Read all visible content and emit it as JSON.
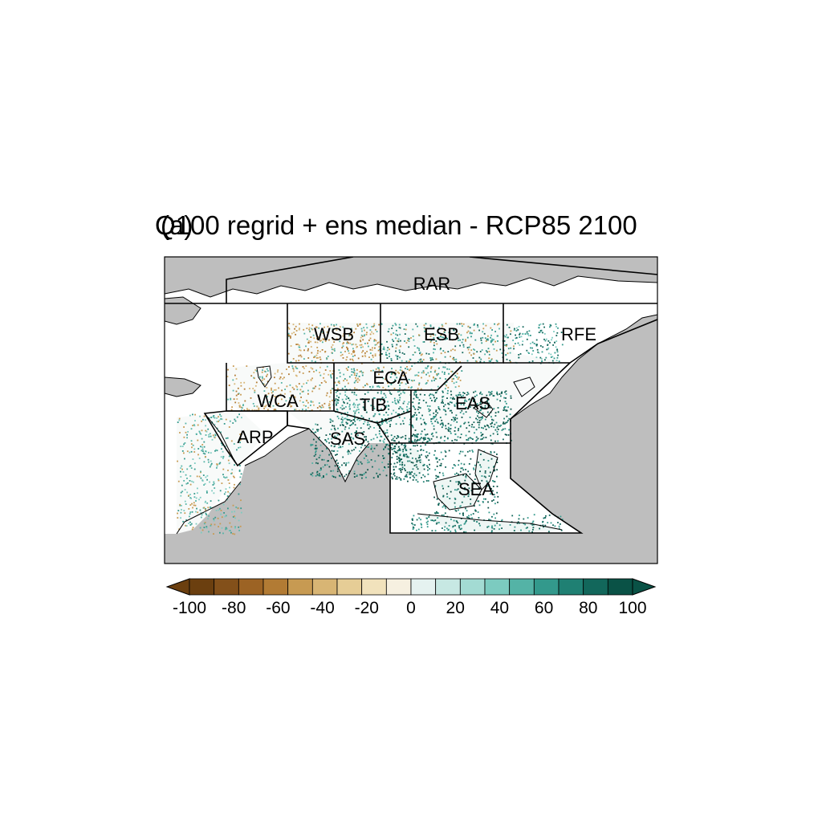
{
  "map": {
    "title": "Q100 regrid + ens median - RCP85 2100",
    "panel_label": "(a)",
    "regions": [
      {
        "code": "RAR"
      },
      {
        "code": "WSB"
      },
      {
        "code": "ESB"
      },
      {
        "code": "RFE"
      },
      {
        "code": "ECA"
      },
      {
        "code": "WCA"
      },
      {
        "code": "TIB"
      },
      {
        "code": "EAS"
      },
      {
        "code": "ARP"
      },
      {
        "code": "SAS"
      },
      {
        "code": "SEA"
      }
    ],
    "colors": {
      "land_masked": "#bebebe",
      "ocean": "#ffffff",
      "boundary": "#000000"
    }
  },
  "colorbar": {
    "ticks": [
      "-100",
      "-80",
      "-60",
      "-40",
      "-20",
      "0",
      "20",
      "40",
      "60",
      "80",
      "100"
    ],
    "colors": [
      "#6b3f0f",
      "#83501a",
      "#9c6324",
      "#b27b34",
      "#c79a52",
      "#d8b574",
      "#e6cd96",
      "#f1e2bc",
      "#f6f0e0",
      "#e5f2f0",
      "#c7e8e3",
      "#a3dbd3",
      "#7ccbc0",
      "#54b3a6",
      "#33998c",
      "#1f8073",
      "#12675b",
      "#0a5246"
    ],
    "extend": "both"
  }
}
